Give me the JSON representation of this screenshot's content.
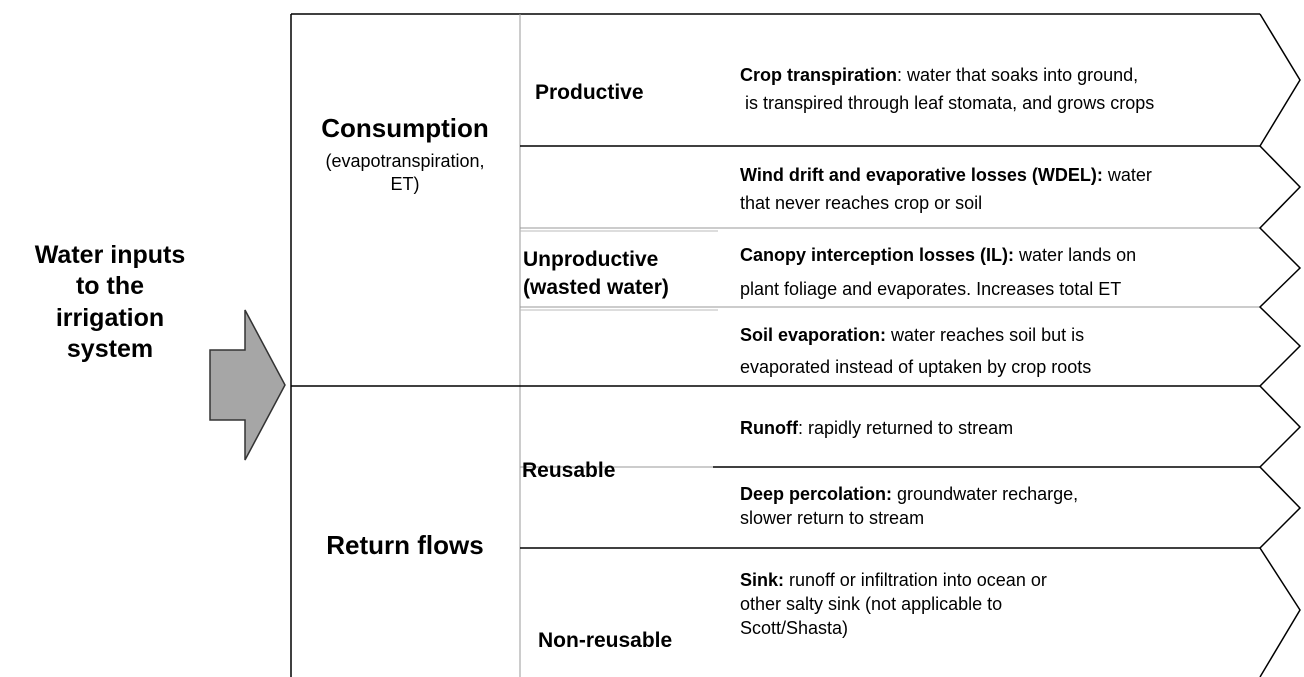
{
  "left_label": {
    "lines": [
      "Water inputs",
      "to the",
      "irrigation",
      "system"
    ]
  },
  "sections": [
    {
      "title": "Consumption",
      "subtitle_lines": [
        "(evapotranspiration,",
        "ET)"
      ]
    },
    {
      "title": "Return flows"
    }
  ],
  "categories": [
    {
      "lines": [
        "Productive"
      ]
    },
    {
      "lines": [
        "Unproductive",
        "(wasted water)"
      ]
    },
    {
      "lines": [
        "Reusable"
      ]
    },
    {
      "lines": [
        "Non-reusable"
      ]
    }
  ],
  "items": [
    {
      "term": "Crop transpiration",
      "lines": [
        ": water that soaks into ground,",
        " is transpired through leaf stomata, and grows crops"
      ]
    },
    {
      "term": "Wind drift and evaporative losses (WDEL):",
      "lines": [
        " water",
        "that never reaches crop or soil"
      ]
    },
    {
      "term": "Canopy interception losses (IL):",
      "lines": [
        " water lands on",
        "plant foliage and evaporates. Increases total ET"
      ]
    },
    {
      "term": "Soil evaporation:",
      "lines": [
        " water reaches soil but is",
        "evaporated instead of uptaken by crop roots"
      ]
    },
    {
      "term": "Runoff",
      "lines": [
        ": rapidly returned to stream"
      ]
    },
    {
      "term": "Deep percolation:",
      "lines": [
        " groundwater recharge,",
        "slower return to stream"
      ]
    },
    {
      "term": "Sink:",
      "lines": [
        " runoff or infiltration into ocean or",
        "other salty sink (not applicable to",
        "Scott/Shasta)"
      ]
    }
  ]
}
